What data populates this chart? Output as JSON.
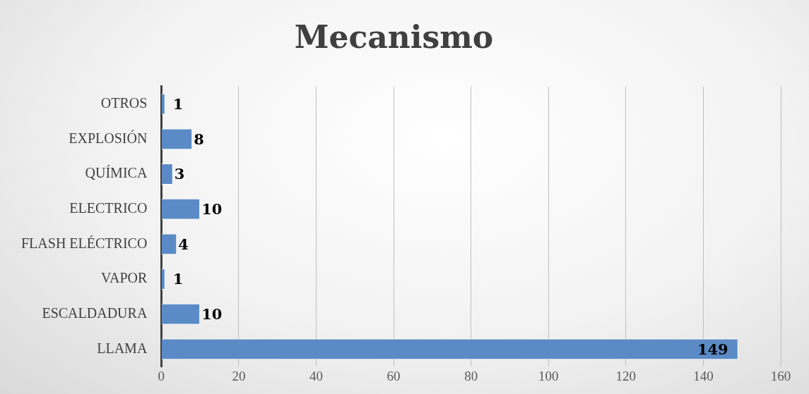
{
  "chart_data": {
    "type": "bar",
    "orientation": "horizontal",
    "title": "Mecanismo",
    "categories": [
      "OTROS",
      "EXPLOSIÓN",
      "QUÍMICA",
      "ELECTRICO",
      "FLASH ELÉCTRICO",
      "VAPOR",
      "ESCALDADURA",
      "LLAMA"
    ],
    "values": [
      1,
      8,
      3,
      10,
      4,
      1,
      10,
      149
    ],
    "color": "#5b8bc6",
    "xlim": [
      0,
      160
    ],
    "xticks": [
      0,
      20,
      40,
      60,
      80,
      100,
      120,
      140,
      160
    ],
    "grid": "x",
    "data_labels": true
  }
}
